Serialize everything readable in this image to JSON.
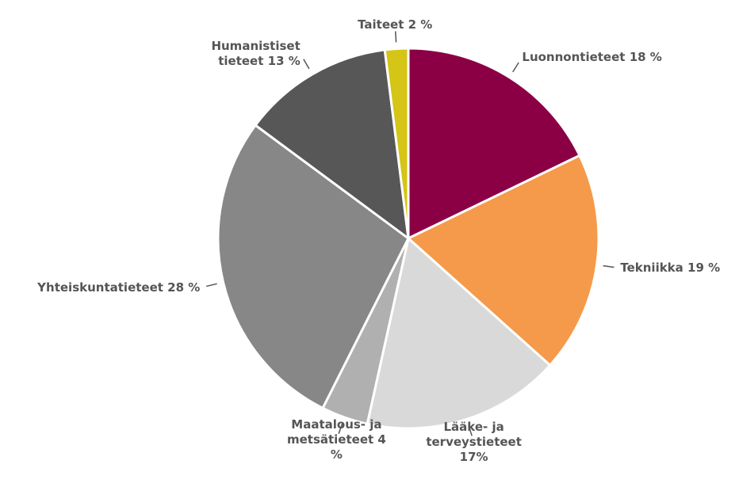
{
  "chart_data": {
    "type": "pie",
    "categories": [
      "Luonnontieteet",
      "Tekniikka",
      "Lääke- ja terveystieteet",
      "Maatalous- ja metsätieteet",
      "Yhteiskuntatieteet",
      "Humanistiset tieteet",
      "Taiteet"
    ],
    "values": [
      18,
      19,
      17,
      4,
      28,
      13,
      2
    ],
    "value_labels": [
      "18 %",
      "19 %",
      "17%",
      "4 %",
      "28 %",
      "13 %",
      "2 %"
    ],
    "colors": [
      "#8b0045",
      "#f59a4a",
      "#d9d9d9",
      "#b0b0b0",
      "#878787",
      "#575757",
      "#d4c516"
    ]
  }
}
